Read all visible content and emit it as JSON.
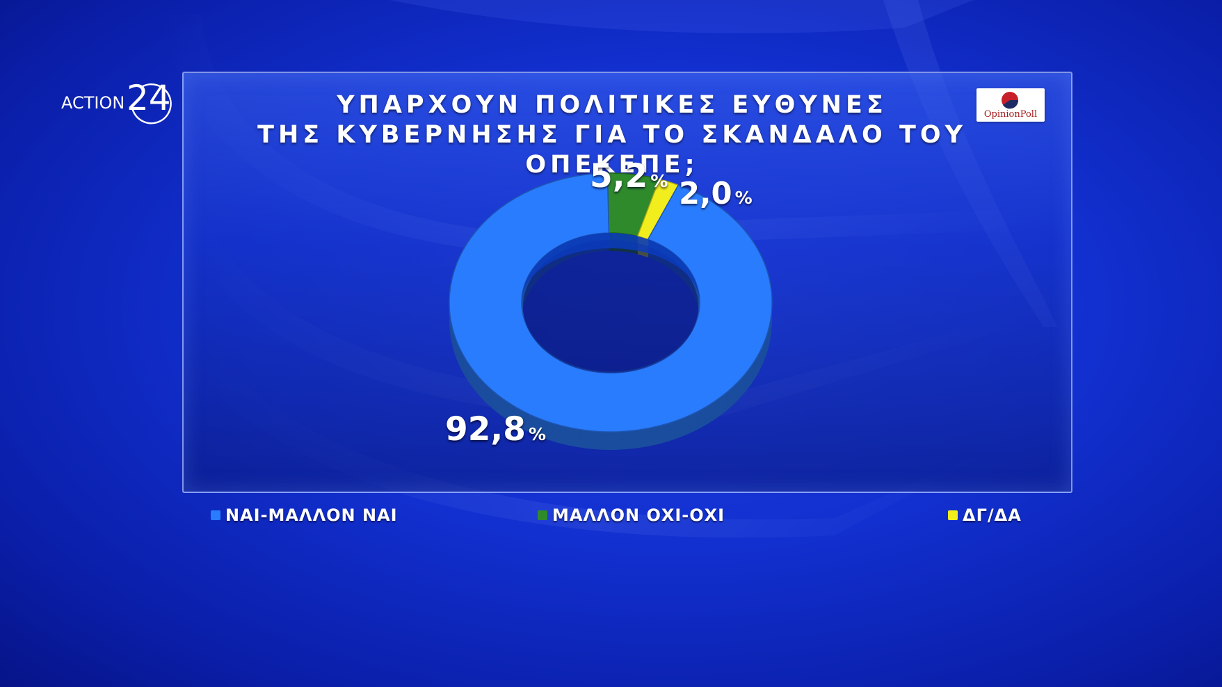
{
  "channel_logo": {
    "word": "ACTION",
    "number": "24"
  },
  "poll_logo": {
    "text": "OpinionPoll"
  },
  "chart_data": {
    "type": "pie",
    "style": "donut-3d",
    "title_lines": [
      "ΥΠΑΡΧΟΥΝ ΠΟΛΙΤΙΚΕΣ ΕΥΘΥΝΕΣ",
      "ΤΗΣ ΚΥΒΕΡΝΗΣΗΣ ΓΙΑ ΤΟ ΣΚΑΝΔΑΛΟ ΤΟΥ ΟΠΕΚΕΠΕ;"
    ],
    "categories": [
      "ΝΑΙ-ΜΑΛΛΟΝ ΝΑΙ",
      "ΜΑΛΛΟΝ ΟΧΙ-ΟΧΙ",
      "ΔΓ/ΔΑ"
    ],
    "values": [
      92.8,
      5.2,
      2.0
    ],
    "value_labels": [
      "92,8",
      "5,2",
      "2,0"
    ],
    "unit": "%",
    "colors": [
      "#2a7cff",
      "#2f8a2c",
      "#f2ee1e"
    ],
    "legend_position": "bottom"
  }
}
